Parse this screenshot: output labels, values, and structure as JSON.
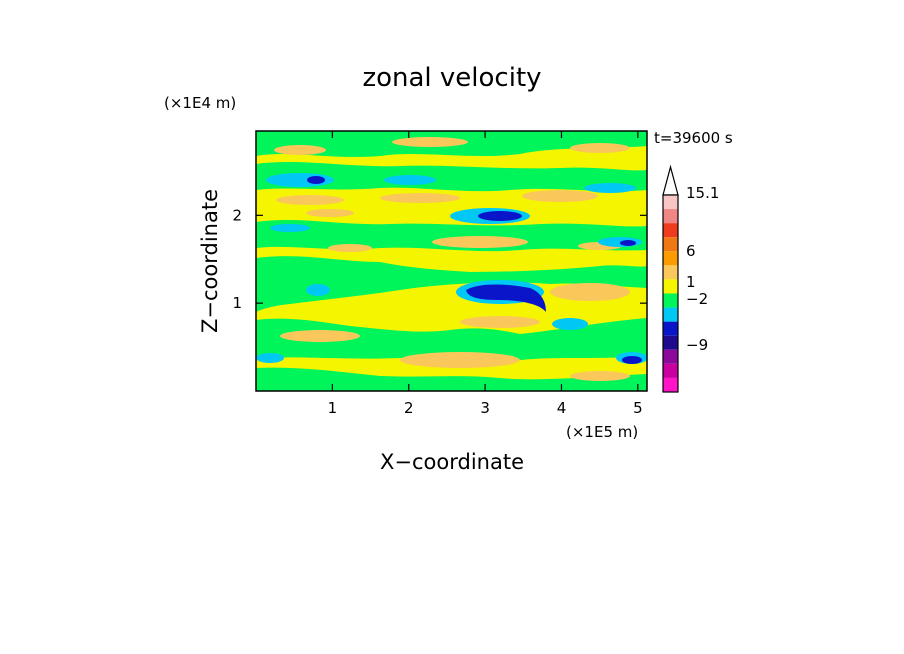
{
  "chart_data": {
    "type": "heatmap",
    "title": "zonal velocity",
    "xlabel": "X−coordinate",
    "ylabel": "Z−coordinate",
    "x_unit": "(×1E5 m)",
    "y_unit": "(×1E4 m)",
    "time_label": "t=39600 s",
    "xlim": [
      0,
      5.12
    ],
    "ylim": [
      0,
      2.96
    ],
    "x_ticks": [
      1,
      2,
      3,
      4,
      5
    ],
    "y_ticks": [
      1,
      2
    ],
    "colorbar": {
      "tick_labels": [
        "15.1",
        "6",
        "1",
        "−2",
        "−9"
      ],
      "levels_top_to_bottom": [
        {
          "color": "#f9c6c6"
        },
        {
          "color": "#f08585"
        },
        {
          "color": "#f03c1e"
        },
        {
          "color": "#f07814"
        },
        {
          "color": "#fa9b00"
        },
        {
          "color": "#fac85a"
        },
        {
          "color": "#f5f500"
        },
        {
          "color": "#00f55a"
        },
        {
          "color": "#00c8f5"
        },
        {
          "color": "#0a14c8"
        },
        {
          "color": "#1e0a8c"
        },
        {
          "color": "#8c0a9b"
        },
        {
          "color": "#c800a0"
        },
        {
          "color": "#ff14c8"
        }
      ],
      "extend_top": true
    },
    "field_colors": {
      "yellow": "#f5f500",
      "orange": "#fac85a",
      "green": "#00f55a",
      "cyan": "#00c8f5",
      "blue": "#0a14c8"
    }
  }
}
